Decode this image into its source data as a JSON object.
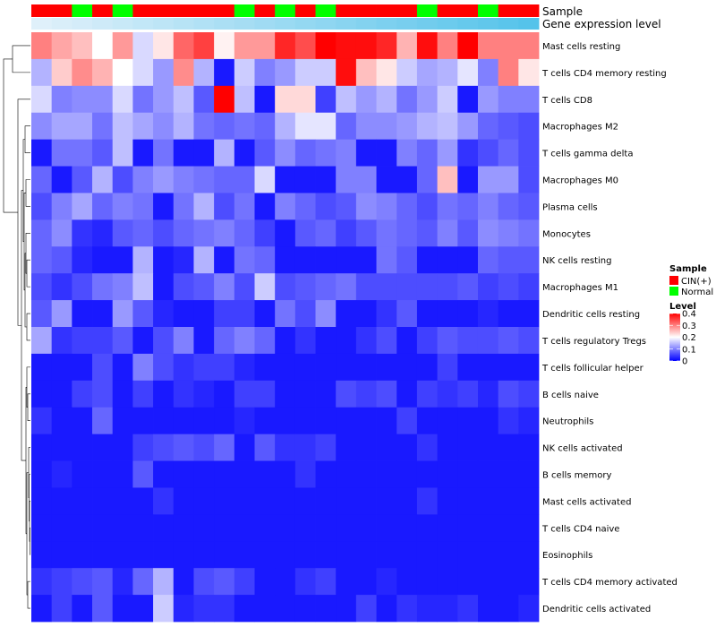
{
  "chart_data": {
    "type": "heatmap",
    "title": "",
    "rows": [
      "Mast cells resting",
      "T cells CD4 memory resting",
      "T cells CD8",
      "Macrophages M2",
      "T cells gamma delta",
      "Macrophages M0",
      "Plasma cells",
      "Monocytes",
      "NK cells resting",
      "Macrophages M1",
      "Dendritic cells resting",
      "T cells regulatory  Tregs",
      "T cells follicular helper",
      "B cells naive",
      "Neutrophils",
      "NK cells activated",
      "B cells memory",
      "Mast cells activated",
      "T cells CD4 naive",
      "Eosinophils",
      "T cells CD4 memory activated",
      "Dendritic cells activated"
    ],
    "samples": [
      "CIN(+)",
      "CIN(+)",
      "Normal",
      "CIN(+)",
      "Normal",
      "CIN(+)",
      "CIN(+)",
      "CIN(+)",
      "CIN(+)",
      "CIN(+)",
      "Normal",
      "CIN(+)",
      "Normal",
      "CIN(+)",
      "Normal",
      "CIN(+)",
      "CIN(+)",
      "CIN(+)",
      "CIN(+)",
      "Normal",
      "CIN(+)",
      "CIN(+)",
      "Normal",
      "CIN(+)",
      "CIN(+)"
    ],
    "expression_level": [
      0.02,
      0.03,
      0.04,
      0.05,
      0.06,
      0.07,
      0.08,
      0.09,
      0.1,
      0.11,
      0.12,
      0.13,
      0.14,
      0.15,
      0.16,
      0.17,
      0.18,
      0.19,
      0.2,
      0.21,
      0.22,
      0.23,
      0.24,
      0.25,
      0.26
    ],
    "values": [
      [
        0.3,
        0.27,
        0.25,
        0.2,
        0.28,
        0.17,
        0.22,
        0.32,
        0.35,
        0.21,
        0.28,
        0.28,
        0.37,
        0.34,
        0.4,
        0.39,
        0.39,
        0.37,
        0.26,
        0.39,
        0.3,
        0.4,
        0.3,
        0.3,
        0.3
      ],
      [
        0.14,
        0.24,
        0.29,
        0.26,
        0.2,
        0.17,
        0.12,
        0.29,
        0.14,
        0.02,
        0.16,
        0.1,
        0.12,
        0.16,
        0.16,
        0.39,
        0.25,
        0.22,
        0.16,
        0.13,
        0.14,
        0.18,
        0.1,
        0.3,
        0.22
      ],
      [
        0.17,
        0.1,
        0.11,
        0.11,
        0.17,
        0.09,
        0.12,
        0.15,
        0.07,
        0.4,
        0.15,
        0.02,
        0.23,
        0.23,
        0.05,
        0.15,
        0.12,
        0.14,
        0.09,
        0.12,
        0.16,
        0.02,
        0.12,
        0.1,
        0.1
      ],
      [
        0.11,
        0.13,
        0.13,
        0.09,
        0.15,
        0.13,
        0.11,
        0.14,
        0.09,
        0.08,
        0.09,
        0.08,
        0.14,
        0.18,
        0.18,
        0.08,
        0.11,
        0.11,
        0.12,
        0.14,
        0.15,
        0.12,
        0.08,
        0.07,
        0.06
      ],
      [
        0.02,
        0.09,
        0.09,
        0.07,
        0.15,
        0.02,
        0.09,
        0.02,
        0.02,
        0.14,
        0.02,
        0.07,
        0.11,
        0.08,
        0.09,
        0.1,
        0.02,
        0.02,
        0.1,
        0.08,
        0.12,
        0.04,
        0.06,
        0.08,
        0.06
      ],
      [
        0.08,
        0.02,
        0.07,
        0.14,
        0.06,
        0.1,
        0.12,
        0.1,
        0.09,
        0.08,
        0.08,
        0.17,
        0.02,
        0.02,
        0.02,
        0.1,
        0.1,
        0.02,
        0.02,
        0.08,
        0.25,
        0.02,
        0.12,
        0.12,
        0.06
      ],
      [
        0.06,
        0.1,
        0.13,
        0.08,
        0.1,
        0.09,
        0.02,
        0.09,
        0.14,
        0.06,
        0.09,
        0.02,
        0.1,
        0.08,
        0.06,
        0.07,
        0.11,
        0.1,
        0.08,
        0.06,
        0.09,
        0.08,
        0.1,
        0.08,
        0.07
      ],
      [
        0.08,
        0.11,
        0.04,
        0.03,
        0.07,
        0.08,
        0.06,
        0.08,
        0.09,
        0.1,
        0.08,
        0.05,
        0.02,
        0.07,
        0.08,
        0.05,
        0.07,
        0.09,
        0.08,
        0.07,
        0.1,
        0.07,
        0.11,
        0.1,
        0.09
      ],
      [
        0.08,
        0.07,
        0.03,
        0.02,
        0.02,
        0.14,
        0.02,
        0.03,
        0.14,
        0.02,
        0.09,
        0.08,
        0.02,
        0.02,
        0.02,
        0.02,
        0.02,
        0.09,
        0.07,
        0.02,
        0.02,
        0.02,
        0.08,
        0.07,
        0.07
      ],
      [
        0.06,
        0.04,
        0.06,
        0.09,
        0.1,
        0.15,
        0.02,
        0.06,
        0.07,
        0.1,
        0.06,
        0.16,
        0.06,
        0.07,
        0.08,
        0.09,
        0.06,
        0.06,
        0.06,
        0.06,
        0.06,
        0.07,
        0.05,
        0.06,
        0.05
      ],
      [
        0.07,
        0.12,
        0.02,
        0.02,
        0.12,
        0.07,
        0.03,
        0.02,
        0.02,
        0.05,
        0.05,
        0.02,
        0.09,
        0.06,
        0.11,
        0.02,
        0.02,
        0.04,
        0.07,
        0.02,
        0.02,
        0.02,
        0.03,
        0.02,
        0.02
      ],
      [
        0.13,
        0.04,
        0.05,
        0.05,
        0.07,
        0.02,
        0.06,
        0.1,
        0.02,
        0.08,
        0.1,
        0.08,
        0.02,
        0.04,
        0.02,
        0.02,
        0.04,
        0.06,
        0.02,
        0.05,
        0.07,
        0.06,
        0.06,
        0.07,
        0.06
      ],
      [
        0.02,
        0.02,
        0.02,
        0.06,
        0.02,
        0.1,
        0.06,
        0.04,
        0.05,
        0.05,
        0.03,
        0.02,
        0.02,
        0.02,
        0.02,
        0.02,
        0.02,
        0.02,
        0.02,
        0.02,
        0.05,
        0.02,
        0.02,
        0.02,
        0.02
      ],
      [
        0.02,
        0.02,
        0.05,
        0.06,
        0.02,
        0.05,
        0.02,
        0.04,
        0.03,
        0.02,
        0.05,
        0.05,
        0.02,
        0.02,
        0.02,
        0.06,
        0.05,
        0.06,
        0.02,
        0.05,
        0.04,
        0.05,
        0.03,
        0.06,
        0.05
      ],
      [
        0.04,
        0.02,
        0.02,
        0.08,
        0.02,
        0.02,
        0.02,
        0.02,
        0.02,
        0.02,
        0.03,
        0.02,
        0.02,
        0.02,
        0.02,
        0.02,
        0.02,
        0.02,
        0.05,
        0.02,
        0.02,
        0.02,
        0.02,
        0.04,
        0.03
      ],
      [
        0.02,
        0.02,
        0.02,
        0.02,
        0.02,
        0.05,
        0.06,
        0.07,
        0.06,
        0.08,
        0.02,
        0.07,
        0.04,
        0.04,
        0.05,
        0.02,
        0.02,
        0.02,
        0.02,
        0.04,
        0.02,
        0.02,
        0.02,
        0.02,
        0.02
      ],
      [
        0.02,
        0.03,
        0.02,
        0.02,
        0.02,
        0.07,
        0.02,
        0.02,
        0.02,
        0.02,
        0.02,
        0.02,
        0.02,
        0.04,
        0.02,
        0.02,
        0.02,
        0.02,
        0.02,
        0.02,
        0.02,
        0.02,
        0.02,
        0.02,
        0.02
      ],
      [
        0.02,
        0.02,
        0.02,
        0.02,
        0.02,
        0.02,
        0.04,
        0.02,
        0.02,
        0.02,
        0.02,
        0.02,
        0.02,
        0.02,
        0.02,
        0.02,
        0.02,
        0.02,
        0.02,
        0.04,
        0.02,
        0.02,
        0.02,
        0.02,
        0.02
      ],
      [
        0.02,
        0.02,
        0.02,
        0.02,
        0.02,
        0.02,
        0.02,
        0.02,
        0.02,
        0.02,
        0.02,
        0.02,
        0.02,
        0.02,
        0.02,
        0.02,
        0.02,
        0.02,
        0.02,
        0.02,
        0.02,
        0.02,
        0.02,
        0.02,
        0.02
      ],
      [
        0.02,
        0.02,
        0.02,
        0.02,
        0.02,
        0.02,
        0.02,
        0.02,
        0.02,
        0.02,
        0.02,
        0.02,
        0.02,
        0.02,
        0.02,
        0.02,
        0.02,
        0.02,
        0.02,
        0.02,
        0.02,
        0.02,
        0.02,
        0.02,
        0.02
      ],
      [
        0.04,
        0.05,
        0.06,
        0.07,
        0.03,
        0.08,
        0.14,
        0.02,
        0.06,
        0.07,
        0.05,
        0.02,
        0.02,
        0.04,
        0.05,
        0.02,
        0.02,
        0.03,
        0.02,
        0.02,
        0.02,
        0.02,
        0.02,
        0.02,
        0.02
      ],
      [
        0.02,
        0.05,
        0.02,
        0.07,
        0.02,
        0.02,
        0.16,
        0.03,
        0.04,
        0.04,
        0.02,
        0.02,
        0.02,
        0.02,
        0.02,
        0.02,
        0.05,
        0.02,
        0.04,
        0.03,
        0.03,
        0.04,
        0.02,
        0.02,
        0.03
      ]
    ],
    "legend": {
      "sample_title": "Sample",
      "sample_items": [
        {
          "label": "CIN(+)",
          "color": "#ff0000"
        },
        {
          "label": "Normal",
          "color": "#00ff00"
        }
      ],
      "level_title": "Level",
      "level_ticks": [
        0.4,
        0.3,
        0.2,
        0.1,
        0
      ]
    },
    "annotation_tracks": [
      "Sample",
      "Gene expression level"
    ],
    "value_range": [
      0,
      0.4
    ],
    "colors": {
      "low": "#0000ff",
      "mid": "#ffffff",
      "high": "#ff0000",
      "track_low": "#dff0fa",
      "track_high": "#55c3ea"
    }
  }
}
